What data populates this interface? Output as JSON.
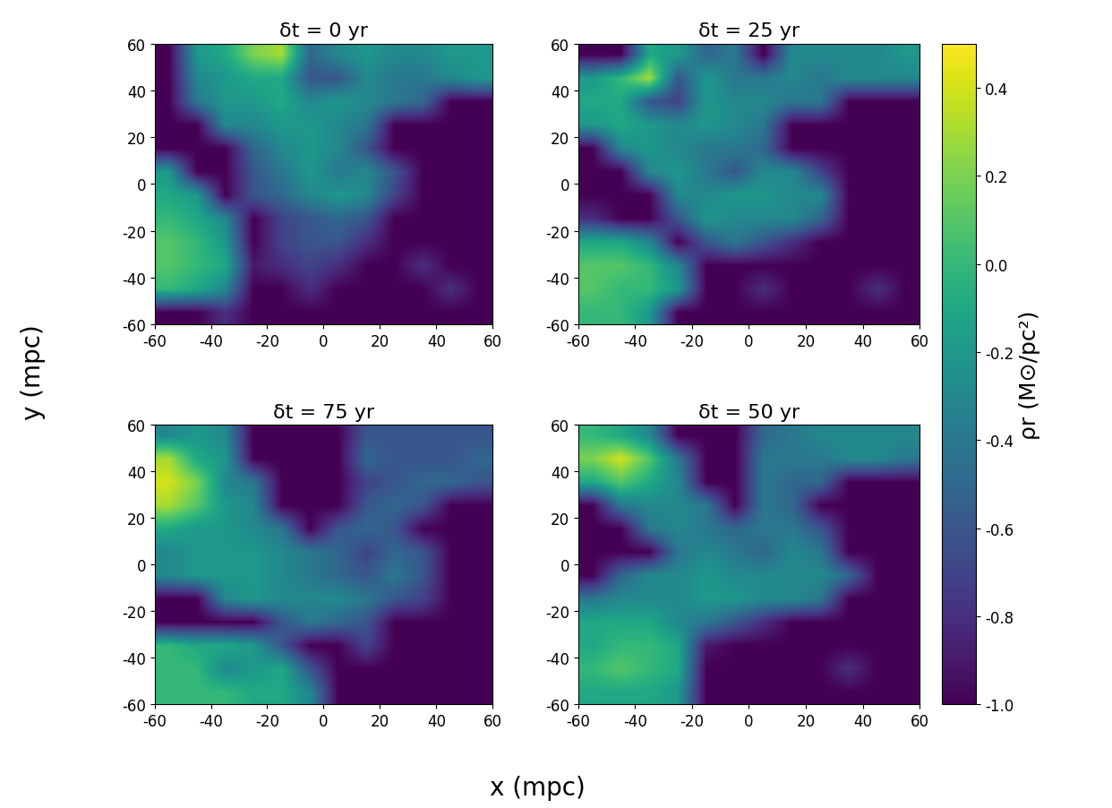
{
  "chart_data": [
    {
      "type": "heatmap",
      "title": "δt = 0 yr",
      "xlim": [
        -60,
        60
      ],
      "ylim": [
        -60,
        60
      ],
      "xticks": [
        -60,
        -40,
        -20,
        0,
        20,
        40,
        60
      ],
      "yticks": [
        -60,
        -40,
        -20,
        0,
        20,
        40,
        60
      ],
      "cells": [
        [
          -1,
          -0.2,
          -0.1,
          0.2,
          0.3,
          -0.5,
          -0.3,
          -0.2,
          -0.3,
          -0.3,
          -0.2,
          -0.2
        ],
        [
          -1,
          -0.3,
          -0.2,
          -0.1,
          -0.1,
          -0.6,
          -0.6,
          -0.3,
          -0.4,
          -0.4,
          -0.3,
          -0.2
        ],
        [
          -1,
          -0.4,
          -0.2,
          -0.2,
          -0.1,
          -0.3,
          -0.2,
          -0.3,
          -0.4,
          -0.5,
          -1,
          -1
        ],
        [
          -1,
          -1,
          -0.3,
          -0.3,
          -0.2,
          -0.2,
          -0.3,
          -0.4,
          -1,
          -1,
          -1,
          -1
        ],
        [
          -1,
          -1,
          -1,
          -0.5,
          -0.3,
          -0.2,
          -0.3,
          -0.6,
          -1,
          -1,
          -1,
          -1
        ],
        [
          -0.2,
          -1,
          -1,
          -0.6,
          -0.4,
          -0.2,
          -0.4,
          -0.3,
          -0.6,
          -1,
          -1,
          -1
        ],
        [
          -0.1,
          -0.2,
          -1,
          -0.6,
          -0.5,
          -0.3,
          -0.2,
          -0.3,
          -0.7,
          -1,
          -1,
          -1
        ],
        [
          0.0,
          -0.1,
          -0.3,
          -1,
          -0.7,
          -0.6,
          -0.5,
          -0.6,
          -1,
          -1,
          -1,
          -1
        ],
        [
          0.1,
          0.0,
          -0.2,
          -1,
          -0.7,
          -0.6,
          -0.6,
          -0.8,
          -1,
          -1,
          -1,
          -1
        ],
        [
          0.1,
          0.0,
          -0.1,
          -0.9,
          -0.8,
          -0.7,
          -0.8,
          -1,
          -1,
          -0.8,
          -1,
          -1
        ],
        [
          0.0,
          -0.1,
          -0.3,
          -1,
          -1,
          -0.8,
          -1,
          -1,
          -1,
          -1,
          -0.8,
          -1
        ],
        [
          -1,
          -1,
          -0.8,
          -1,
          -1,
          -1,
          -1,
          -1,
          -1,
          -1,
          -1,
          -1
        ]
      ]
    },
    {
      "type": "heatmap",
      "title": "δt = 25 yr",
      "xlim": [
        -60,
        60
      ],
      "ylim": [
        -60,
        60
      ],
      "xticks": [
        -60,
        -40,
        -20,
        0,
        20,
        40,
        60
      ],
      "yticks": [
        -60,
        -40,
        -20,
        0,
        20,
        40,
        60
      ],
      "cells": [
        [
          -1,
          -1,
          -0.1,
          -0.2,
          -0.5,
          -0.4,
          -1,
          -0.3,
          -0.3,
          -0.3,
          -0.3,
          -0.2
        ],
        [
          -0.2,
          0.0,
          0.3,
          -0.6,
          -0.2,
          -0.4,
          -0.4,
          -0.3,
          -0.4,
          -0.3,
          -0.3,
          -0.3
        ],
        [
          -0.1,
          -0.1,
          -0.6,
          -0.7,
          -0.2,
          -0.3,
          -0.3,
          -0.4,
          -0.4,
          -1,
          -1,
          -1
        ],
        [
          -0.2,
          -0.1,
          -0.2,
          -0.3,
          -0.2,
          -0.3,
          -0.4,
          -1,
          -1,
          -1,
          -1,
          -1
        ],
        [
          -1,
          -0.3,
          -0.2,
          -0.3,
          -0.4,
          -0.4,
          -0.5,
          -1,
          -1,
          -1,
          -1,
          -1
        ],
        [
          -1,
          -1,
          -0.3,
          -0.2,
          -0.4,
          -0.6,
          -0.3,
          -0.3,
          -0.7,
          -1,
          -1,
          -1
        ],
        [
          -1,
          -1,
          -1,
          -0.3,
          -0.3,
          -0.2,
          -0.2,
          -0.3,
          -0.3,
          -1,
          -1,
          -1
        ],
        [
          -0.8,
          -1,
          -1,
          -0.6,
          -0.2,
          -0.3,
          -0.3,
          -0.3,
          -0.5,
          -1,
          -1,
          -1
        ],
        [
          -0.1,
          -0.1,
          -0.3,
          -1,
          -0.6,
          -0.4,
          -0.6,
          -0.8,
          -1,
          -1,
          -1,
          -1
        ],
        [
          0.1,
          0.1,
          0.0,
          -0.3,
          -1,
          -1,
          -1,
          -1,
          -1,
          -1,
          -1,
          -1
        ],
        [
          0.1,
          0.0,
          0.0,
          -0.2,
          -1,
          -1,
          -0.8,
          -1,
          -1,
          -1,
          -0.8,
          -1
        ],
        [
          0.0,
          0.0,
          -0.2,
          -1,
          -1,
          -1,
          -1,
          -1,
          -1,
          -1,
          -1,
          -1
        ]
      ]
    },
    {
      "type": "heatmap",
      "title": "δt = 75 yr",
      "xlim": [
        -60,
        60
      ],
      "ylim": [
        -60,
        60
      ],
      "xticks": [
        -60,
        -40,
        -20,
        0,
        20,
        40,
        60
      ],
      "yticks": [
        -60,
        -40,
        -20,
        0,
        20,
        40,
        60
      ],
      "cells": [
        [
          -0.3,
          -0.2,
          -0.3,
          -1,
          -1,
          -1,
          -1,
          -0.6,
          -0.6,
          -0.6,
          -0.6,
          -0.6
        ],
        [
          0.3,
          -0.1,
          -0.2,
          -1,
          -1,
          -1,
          -1,
          -0.5,
          -0.6,
          -0.6,
          -0.6,
          -0.5
        ],
        [
          0.4,
          0.2,
          -0.3,
          -0.4,
          -1,
          -1,
          -1,
          -0.7,
          -0.6,
          -0.5,
          -0.5,
          -0.6
        ],
        [
          0.3,
          0.1,
          -0.2,
          -0.3,
          -1,
          -1,
          -1,
          -0.6,
          -0.5,
          -0.6,
          -1,
          -1
        ],
        [
          -0.1,
          -0.2,
          -0.2,
          -0.3,
          -0.4,
          -1,
          -0.6,
          -0.5,
          -0.6,
          -1,
          -1,
          -1
        ],
        [
          -0.3,
          -0.2,
          -0.2,
          -0.2,
          -0.3,
          -0.4,
          -0.5,
          -0.7,
          -0.5,
          -0.6,
          -1,
          -1
        ],
        [
          -0.3,
          -0.2,
          -0.2,
          -0.2,
          -0.3,
          -0.4,
          -0.5,
          -0.6,
          -0.4,
          -0.6,
          -1,
          -1
        ],
        [
          -1,
          -1,
          -0.3,
          -0.2,
          -0.3,
          -0.3,
          -0.3,
          -0.4,
          -0.6,
          -0.7,
          -1,
          -1
        ],
        [
          -1,
          -1,
          -1,
          -1,
          -0.6,
          -0.4,
          -0.5,
          -0.6,
          -1,
          -1,
          -1,
          -1
        ],
        [
          0.0,
          -0.1,
          -0.1,
          -0.2,
          -0.6,
          -1,
          -1,
          -0.7,
          -1,
          -1,
          -1,
          -1
        ],
        [
          0.0,
          0.0,
          -0.3,
          -0.2,
          -0.1,
          -0.6,
          -1,
          -1,
          -1,
          -1,
          -1,
          -1
        ],
        [
          0.0,
          0.0,
          0.0,
          -0.1,
          -0.1,
          -0.3,
          -1,
          -1,
          -1,
          -1,
          -1,
          -1
        ]
      ]
    },
    {
      "type": "heatmap",
      "title": "δt = 50 yr",
      "xlim": [
        -60,
        60
      ],
      "ylim": [
        -60,
        60
      ],
      "xticks": [
        -60,
        -40,
        -20,
        0,
        20,
        40,
        60
      ],
      "yticks": [
        -60,
        -40,
        -20,
        0,
        20,
        40,
        60
      ],
      "cells": [
        [
          0.0,
          -0.1,
          -0.3,
          -1,
          -1,
          -1,
          -0.5,
          -0.4,
          -0.3,
          -0.3,
          -0.3,
          -0.3
        ],
        [
          0.2,
          0.4,
          0.1,
          -0.4,
          -1,
          -1,
          -0.4,
          -0.4,
          -0.4,
          -0.3,
          -0.3,
          -0.4
        ],
        [
          -0.1,
          0.1,
          -0.1,
          -0.3,
          -1,
          -1,
          -0.4,
          -0.5,
          -0.5,
          -1,
          -1,
          -1
        ],
        [
          -1,
          -0.4,
          -0.3,
          -0.3,
          -0.4,
          -1,
          -0.4,
          -0.5,
          -1,
          -1,
          -1,
          -1
        ],
        [
          -1,
          -1,
          -0.4,
          -0.3,
          -0.4,
          -0.5,
          -0.4,
          -0.4,
          -0.6,
          -1,
          -1,
          -1
        ],
        [
          -1,
          -1,
          -1,
          -0.4,
          -0.3,
          -0.4,
          -0.5,
          -0.3,
          -0.4,
          -1,
          -1,
          -1
        ],
        [
          -1,
          -0.5,
          -0.3,
          -0.3,
          -0.2,
          -0.3,
          -0.3,
          -0.3,
          -0.3,
          -0.5,
          -1,
          -1
        ],
        [
          -0.4,
          -0.3,
          -0.3,
          -0.3,
          -0.2,
          -0.2,
          -0.3,
          -0.3,
          -0.4,
          -1,
          -1,
          -1
        ],
        [
          -0.1,
          -0.1,
          -0.1,
          -0.3,
          -0.4,
          -0.6,
          -0.8,
          -1,
          -1,
          -1,
          -1,
          -1
        ],
        [
          -0.1,
          0.0,
          0.0,
          -0.1,
          -0.9,
          -1,
          -1,
          -1,
          -1,
          -1,
          -1,
          -1
        ],
        [
          0.0,
          0.1,
          0.0,
          -0.1,
          -1,
          -1,
          -1,
          -1,
          -1,
          -0.8,
          -1,
          -1
        ],
        [
          -0.1,
          -0.1,
          -0.1,
          -0.2,
          -1,
          -1,
          -1,
          -1,
          -1,
          -1,
          -1,
          -1
        ]
      ]
    }
  ],
  "xlabel": "x (mpc)",
  "ylabel": "y (mpc)",
  "colorbar": {
    "label": "ρr (M⊙/pc²)",
    "color": "viridis",
    "range": [
      -1.0,
      0.5
    ],
    "ticks": [
      -1.0,
      -0.8,
      -0.6,
      -0.4,
      -0.2,
      0.0,
      0.2,
      0.4
    ]
  }
}
